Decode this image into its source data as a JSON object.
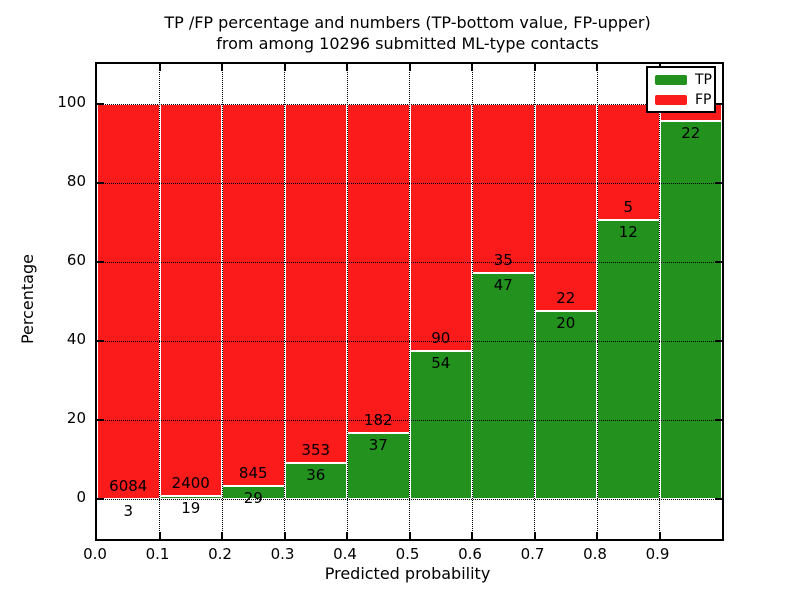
{
  "title": {
    "line1": "TP /FP percentage and numbers (TP-bottom value, FP-upper)",
    "line2": "from among 10296 submitted ML-type contacts"
  },
  "axes": {
    "xlabel": "Predicted probability",
    "ylabel": "Percentage"
  },
  "legend": {
    "items": [
      {
        "label": "TP",
        "color": "#22911e"
      },
      {
        "label": "FP",
        "color": "#fb1b1b"
      }
    ]
  },
  "chart_data": {
    "type": "bar",
    "stacked": true,
    "title": "TP /FP percentage and numbers (TP-bottom value, FP-upper) from among 10296 submitted ML-type contacts",
    "xlabel": "Predicted probability",
    "ylabel": "Percentage",
    "xlim": [
      0.0,
      1.0
    ],
    "ylim": [
      -10,
      110
    ],
    "grid": "dotted",
    "legend_position": "upper right",
    "total_contacts": 10296,
    "x_tick_labels": [
      "0.0",
      "0.1",
      "0.2",
      "0.3",
      "0.4",
      "0.5",
      "0.6",
      "0.7",
      "0.8",
      "0.9"
    ],
    "y_ticks": [
      0,
      20,
      40,
      60,
      80,
      100
    ],
    "series": [
      {
        "name": "TP",
        "color": "#22911e"
      },
      {
        "name": "FP",
        "color": "#fb1b1b"
      }
    ],
    "bins": [
      {
        "range": [
          0.0,
          0.1
        ],
        "tp_pct": 0.05,
        "fp_pct": 99.95,
        "tp_label": "3",
        "fp_label": "6084"
      },
      {
        "range": [
          0.1,
          0.2
        ],
        "tp_pct": 0.79,
        "fp_pct": 99.21,
        "tp_label": "19",
        "fp_label": "2400"
      },
      {
        "range": [
          0.2,
          0.3
        ],
        "tp_pct": 3.32,
        "fp_pct": 96.68,
        "tp_label": "29",
        "fp_label": "845"
      },
      {
        "range": [
          0.3,
          0.4
        ],
        "tp_pct": 9.25,
        "fp_pct": 90.75,
        "tp_label": "36",
        "fp_label": "353"
      },
      {
        "range": [
          0.4,
          0.5
        ],
        "tp_pct": 16.89,
        "fp_pct": 83.11,
        "tp_label": "37",
        "fp_label": "182"
      },
      {
        "range": [
          0.5,
          0.6
        ],
        "tp_pct": 37.5,
        "fp_pct": 62.5,
        "tp_label": "54",
        "fp_label": "90"
      },
      {
        "range": [
          0.6,
          0.7
        ],
        "tp_pct": 57.32,
        "fp_pct": 42.68,
        "tp_label": "47",
        "fp_label": "35"
      },
      {
        "range": [
          0.7,
          0.8
        ],
        "tp_pct": 47.62,
        "fp_pct": 52.38,
        "tp_label": "20",
        "fp_label": "22"
      },
      {
        "range": [
          0.8,
          0.9
        ],
        "tp_pct": 70.59,
        "fp_pct": 29.41,
        "tp_label": "12",
        "fp_label": "5"
      },
      {
        "range": [
          0.9,
          1.0
        ],
        "tp_pct": 95.65,
        "fp_pct": 4.35,
        "tp_label": "22",
        "fp_label": ""
      }
    ]
  }
}
